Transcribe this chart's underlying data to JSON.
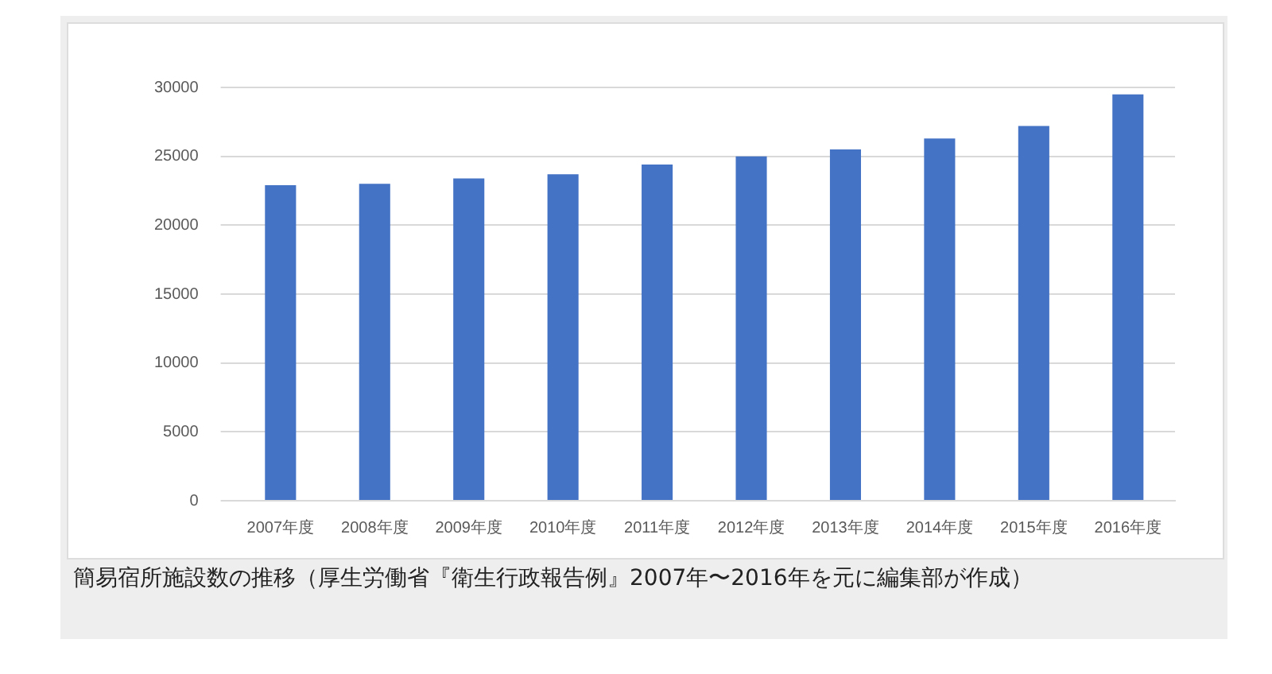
{
  "chart_data": {
    "type": "bar",
    "categories": [
      "2007年度",
      "2008年度",
      "2009年度",
      "2010年度",
      "2011年度",
      "2012年度",
      "2013年度",
      "2014年度",
      "2015年度",
      "2016年度"
    ],
    "values": [
      22900,
      23000,
      23400,
      23700,
      24400,
      25000,
      25500,
      26300,
      27200,
      29500
    ],
    "color": "#4472c4",
    "ylim": [
      0,
      30000
    ],
    "yticks": [
      0,
      5000,
      10000,
      15000,
      20000,
      25000,
      30000
    ],
    "grid": "y",
    "legend": false,
    "annotations": [
      "簡易宿所施設数の推移（厚生労働省『衛生行政報告例』2007年〜2016年を元に編集部が作成）"
    ]
  }
}
